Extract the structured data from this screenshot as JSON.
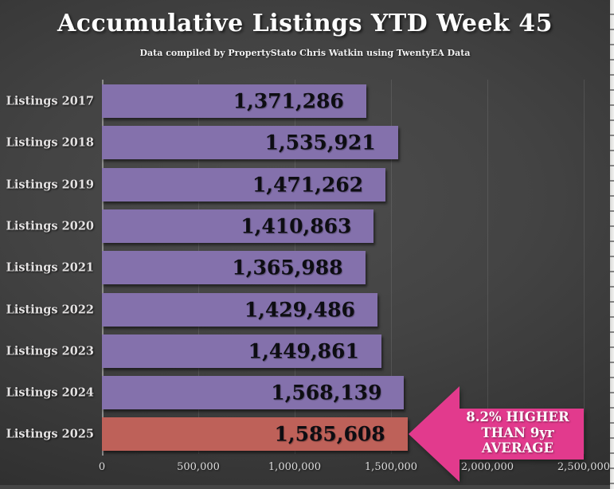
{
  "header": {
    "title": "Accumulative Listings YTD Week 45",
    "subtitle": "Data compiled by PropertyStato Chris Watkin using TwentyEA Data"
  },
  "chart_data": {
    "type": "bar",
    "orientation": "horizontal",
    "title": "Accumulative Listings YTD Week 45",
    "subtitle": "Data compiled by PropertyStato Chris Watkin using TwentyEA Data",
    "categories": [
      "Listings 2017",
      "Listings 2018",
      "Listings 2019",
      "Listings 2020",
      "Listings 2021",
      "Listings 2022",
      "Listings 2023",
      "Listings 2024",
      "Listings 2025"
    ],
    "values": [
      1371286,
      1535921,
      1471262,
      1410863,
      1365988,
      1429486,
      1449861,
      1568139,
      1585608
    ],
    "value_labels": [
      "1,371,286",
      "1,535,921",
      "1,471,262",
      "1,410,863",
      "1,365,988",
      "1,429,486",
      "1,449,861",
      "1,568,139",
      "1,585,608"
    ],
    "xlim": [
      0,
      2500000
    ],
    "x_ticks": [
      0,
      500000,
      1000000,
      1500000,
      2000000,
      2500000
    ],
    "x_tick_labels": [
      "0",
      "500,000",
      "1,000,000",
      "1,500,000",
      "2,000,000",
      "2,500,000"
    ],
    "grid": true,
    "legend": false,
    "bar_color": "#8471AC",
    "highlight_color": "#BE6159",
    "highlight_index": 8
  },
  "annotation": {
    "text": "8.2% HIGHER THAN 9yr AVERAGE",
    "lines": [
      "8.2% HIGHER",
      "THAN 9yr",
      "AVERAGE"
    ],
    "color": "#E23A8D"
  }
}
